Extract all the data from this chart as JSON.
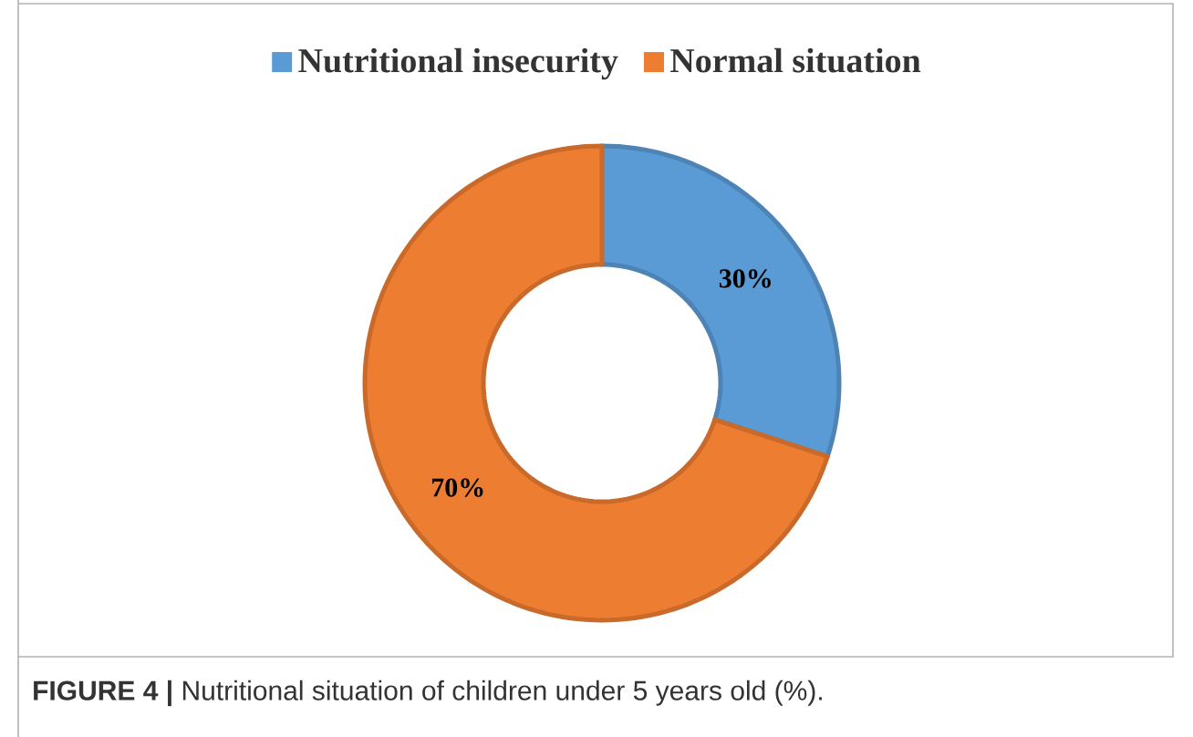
{
  "chart_data": {
    "type": "donut",
    "categories": [
      "Nutritional insecurity",
      "Normal situation"
    ],
    "values": [
      30,
      70
    ],
    "colors": [
      "#5b9bd5",
      "#ed7d31"
    ],
    "value_labels": [
      "30%",
      "70%"
    ],
    "legend": "top",
    "annotations": [
      "**FIGURE 4 |** Nutritional situation of children under 5 years old (%)."
    ]
  }
}
